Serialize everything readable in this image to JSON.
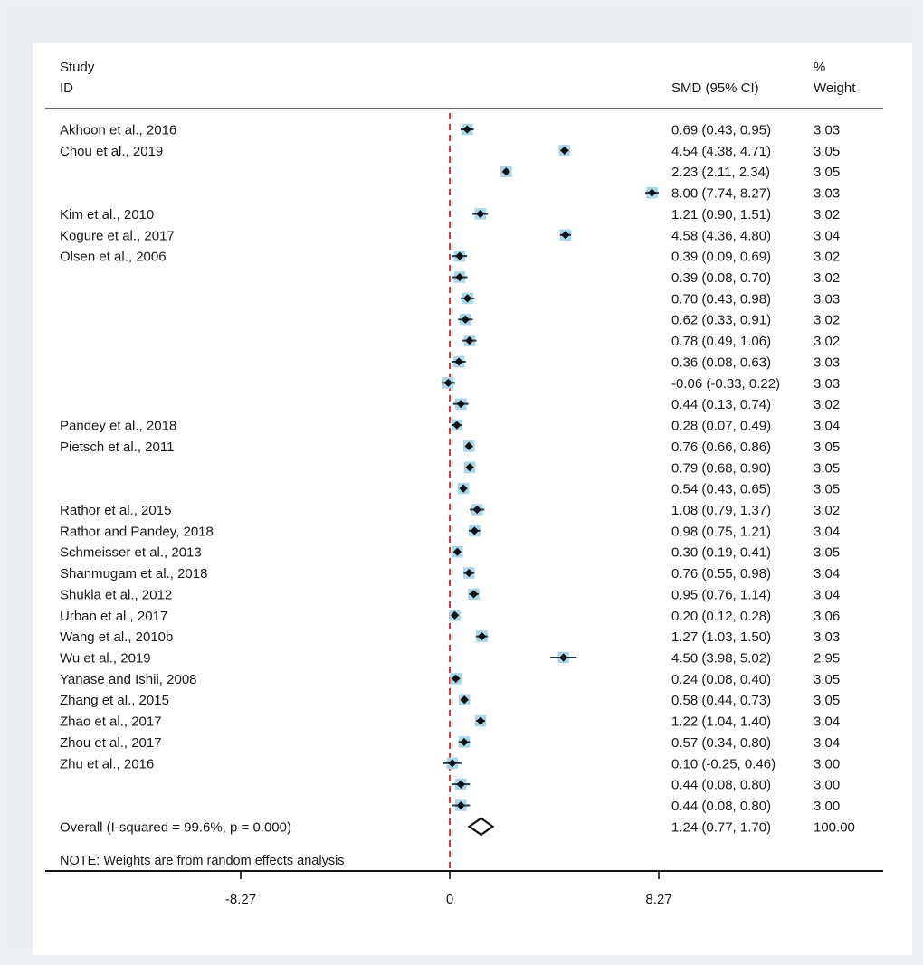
{
  "chart_data": {
    "type": "forest",
    "header": {
      "study_line1": "Study",
      "study_line2": "ID",
      "effect_header": "SMD (95% CI)",
      "weight_line1": "%",
      "weight_line2": "Weight"
    },
    "xaxis": {
      "range": [
        -10.6,
        16.6
      ],
      "ticks": [
        -8.27,
        0,
        8.27
      ],
      "tick_labels": [
        "-8.27",
        "0",
        "8.27"
      ],
      "reference_line": 0
    },
    "studies": [
      {
        "label": "Akhoon et al., 2016",
        "smd": 0.69,
        "lo": 0.43,
        "hi": 0.95,
        "ci_text": "0.69 (0.43, 0.95)",
        "weight": 3.03,
        "weight_text": "3.03"
      },
      {
        "label": "Chou et al., 2019",
        "smd": 4.54,
        "lo": 4.38,
        "hi": 4.71,
        "ci_text": "4.54 (4.38, 4.71)",
        "weight": 3.05,
        "weight_text": "3.05"
      },
      {
        "label": "",
        "smd": 2.23,
        "lo": 2.11,
        "hi": 2.34,
        "ci_text": "2.23 (2.11, 2.34)",
        "weight": 3.05,
        "weight_text": "3.05"
      },
      {
        "label": "",
        "smd": 8.0,
        "lo": 7.74,
        "hi": 8.27,
        "ci_text": "8.00 (7.74, 8.27)",
        "weight": 3.03,
        "weight_text": "3.03"
      },
      {
        "label": "Kim et al., 2010",
        "smd": 1.21,
        "lo": 0.9,
        "hi": 1.51,
        "ci_text": "1.21 (0.90, 1.51)",
        "weight": 3.02,
        "weight_text": "3.02"
      },
      {
        "label": "Kogure et al., 2017",
        "smd": 4.58,
        "lo": 4.36,
        "hi": 4.8,
        "ci_text": "4.58 (4.36, 4.80)",
        "weight": 3.04,
        "weight_text": "3.04"
      },
      {
        "label": "Olsen et al., 2006",
        "smd": 0.39,
        "lo": 0.09,
        "hi": 0.69,
        "ci_text": "0.39 (0.09, 0.69)",
        "weight": 3.02,
        "weight_text": "3.02"
      },
      {
        "label": "",
        "smd": 0.39,
        "lo": 0.08,
        "hi": 0.7,
        "ci_text": "0.39 (0.08, 0.70)",
        "weight": 3.02,
        "weight_text": "3.02"
      },
      {
        "label": "",
        "smd": 0.7,
        "lo": 0.43,
        "hi": 0.98,
        "ci_text": "0.70 (0.43, 0.98)",
        "weight": 3.03,
        "weight_text": "3.03"
      },
      {
        "label": "",
        "smd": 0.62,
        "lo": 0.33,
        "hi": 0.91,
        "ci_text": "0.62 (0.33, 0.91)",
        "weight": 3.02,
        "weight_text": "3.02"
      },
      {
        "label": "",
        "smd": 0.78,
        "lo": 0.49,
        "hi": 1.06,
        "ci_text": "0.78 (0.49, 1.06)",
        "weight": 3.02,
        "weight_text": "3.02"
      },
      {
        "label": "",
        "smd": 0.36,
        "lo": 0.08,
        "hi": 0.63,
        "ci_text": "0.36 (0.08, 0.63)",
        "weight": 3.03,
        "weight_text": "3.03"
      },
      {
        "label": "",
        "smd": -0.06,
        "lo": -0.33,
        "hi": 0.22,
        "ci_text": "-0.06 (-0.33, 0.22)",
        "weight": 3.03,
        "weight_text": "3.03"
      },
      {
        "label": "",
        "smd": 0.44,
        "lo": 0.13,
        "hi": 0.74,
        "ci_text": "0.44 (0.13, 0.74)",
        "weight": 3.02,
        "weight_text": "3.02"
      },
      {
        "label": "Pandey et al., 2018",
        "smd": 0.28,
        "lo": 0.07,
        "hi": 0.49,
        "ci_text": "0.28 (0.07, 0.49)",
        "weight": 3.04,
        "weight_text": "3.04"
      },
      {
        "label": "Pietsch et al., 2011",
        "smd": 0.76,
        "lo": 0.66,
        "hi": 0.86,
        "ci_text": "0.76 (0.66, 0.86)",
        "weight": 3.05,
        "weight_text": "3.05"
      },
      {
        "label": "",
        "smd": 0.79,
        "lo": 0.68,
        "hi": 0.9,
        "ci_text": "0.79 (0.68, 0.90)",
        "weight": 3.05,
        "weight_text": "3.05"
      },
      {
        "label": "",
        "smd": 0.54,
        "lo": 0.43,
        "hi": 0.65,
        "ci_text": "0.54 (0.43, 0.65)",
        "weight": 3.05,
        "weight_text": "3.05"
      },
      {
        "label": "Rathor et al., 2015",
        "smd": 1.08,
        "lo": 0.79,
        "hi": 1.37,
        "ci_text": "1.08 (0.79, 1.37)",
        "weight": 3.02,
        "weight_text": "3.02"
      },
      {
        "label": "Rathor and Pandey, 2018",
        "smd": 0.98,
        "lo": 0.75,
        "hi": 1.21,
        "ci_text": "0.98 (0.75, 1.21)",
        "weight": 3.04,
        "weight_text": "3.04"
      },
      {
        "label": "Schmeisser et al., 2013",
        "smd": 0.3,
        "lo": 0.19,
        "hi": 0.41,
        "ci_text": "0.30 (0.19, 0.41)",
        "weight": 3.05,
        "weight_text": "3.05"
      },
      {
        "label": "Shanmugam et al., 2018",
        "smd": 0.76,
        "lo": 0.55,
        "hi": 0.98,
        "ci_text": "0.76 (0.55, 0.98)",
        "weight": 3.04,
        "weight_text": "3.04"
      },
      {
        "label": "Shukla et al., 2012",
        "smd": 0.95,
        "lo": 0.76,
        "hi": 1.14,
        "ci_text": "0.95 (0.76, 1.14)",
        "weight": 3.04,
        "weight_text": "3.04"
      },
      {
        "label": "Urban et al., 2017",
        "smd": 0.2,
        "lo": 0.12,
        "hi": 0.28,
        "ci_text": "0.20 (0.12, 0.28)",
        "weight": 3.06,
        "weight_text": "3.06"
      },
      {
        "label": "Wang et al., 2010b",
        "smd": 1.27,
        "lo": 1.03,
        "hi": 1.5,
        "ci_text": "1.27 (1.03, 1.50)",
        "weight": 3.03,
        "weight_text": "3.03"
      },
      {
        "label": "Wu et al., 2019",
        "smd": 4.5,
        "lo": 3.98,
        "hi": 5.02,
        "ci_text": "4.50 (3.98, 5.02)",
        "weight": 2.95,
        "weight_text": "2.95"
      },
      {
        "label": "Yanase and Ishii, 2008",
        "smd": 0.24,
        "lo": 0.08,
        "hi": 0.4,
        "ci_text": "0.24 (0.08, 0.40)",
        "weight": 3.05,
        "weight_text": "3.05"
      },
      {
        "label": "Zhang et al., 2015",
        "smd": 0.58,
        "lo": 0.44,
        "hi": 0.73,
        "ci_text": "0.58 (0.44, 0.73)",
        "weight": 3.05,
        "weight_text": "3.05"
      },
      {
        "label": "Zhao et al., 2017",
        "smd": 1.22,
        "lo": 1.04,
        "hi": 1.4,
        "ci_text": "1.22 (1.04, 1.40)",
        "weight": 3.04,
        "weight_text": "3.04"
      },
      {
        "label": "Zhou et al., 2017",
        "smd": 0.57,
        "lo": 0.34,
        "hi": 0.8,
        "ci_text": "0.57 (0.34, 0.80)",
        "weight": 3.04,
        "weight_text": "3.04"
      },
      {
        "label": "Zhu et al., 2016",
        "smd": 0.1,
        "lo": -0.25,
        "hi": 0.46,
        "ci_text": "0.10 (-0.25, 0.46)",
        "weight": 3.0,
        "weight_text": "3.00"
      },
      {
        "label": "",
        "smd": 0.44,
        "lo": 0.08,
        "hi": 0.8,
        "ci_text": "0.44 (0.08, 0.80)",
        "weight": 3.0,
        "weight_text": "3.00"
      },
      {
        "label": "",
        "smd": 0.44,
        "lo": 0.08,
        "hi": 0.8,
        "ci_text": "0.44 (0.08, 0.80)",
        "weight": 3.0,
        "weight_text": "3.00"
      }
    ],
    "overall": {
      "label": "Overall  (I-squared = 99.6%, p = 0.000)",
      "smd": 1.24,
      "lo": 0.77,
      "hi": 1.7,
      "ci_text": "1.24 (0.77, 1.70)",
      "weight_text": "100.00"
    },
    "note": "NOTE: Weights are from random effects analysis",
    "colors": {
      "marker": "#111111",
      "weight_box": "#a9d6e8",
      "ci_line": "#1f3a5f",
      "ref_line": "#e02020",
      "axis": "#111111"
    }
  }
}
